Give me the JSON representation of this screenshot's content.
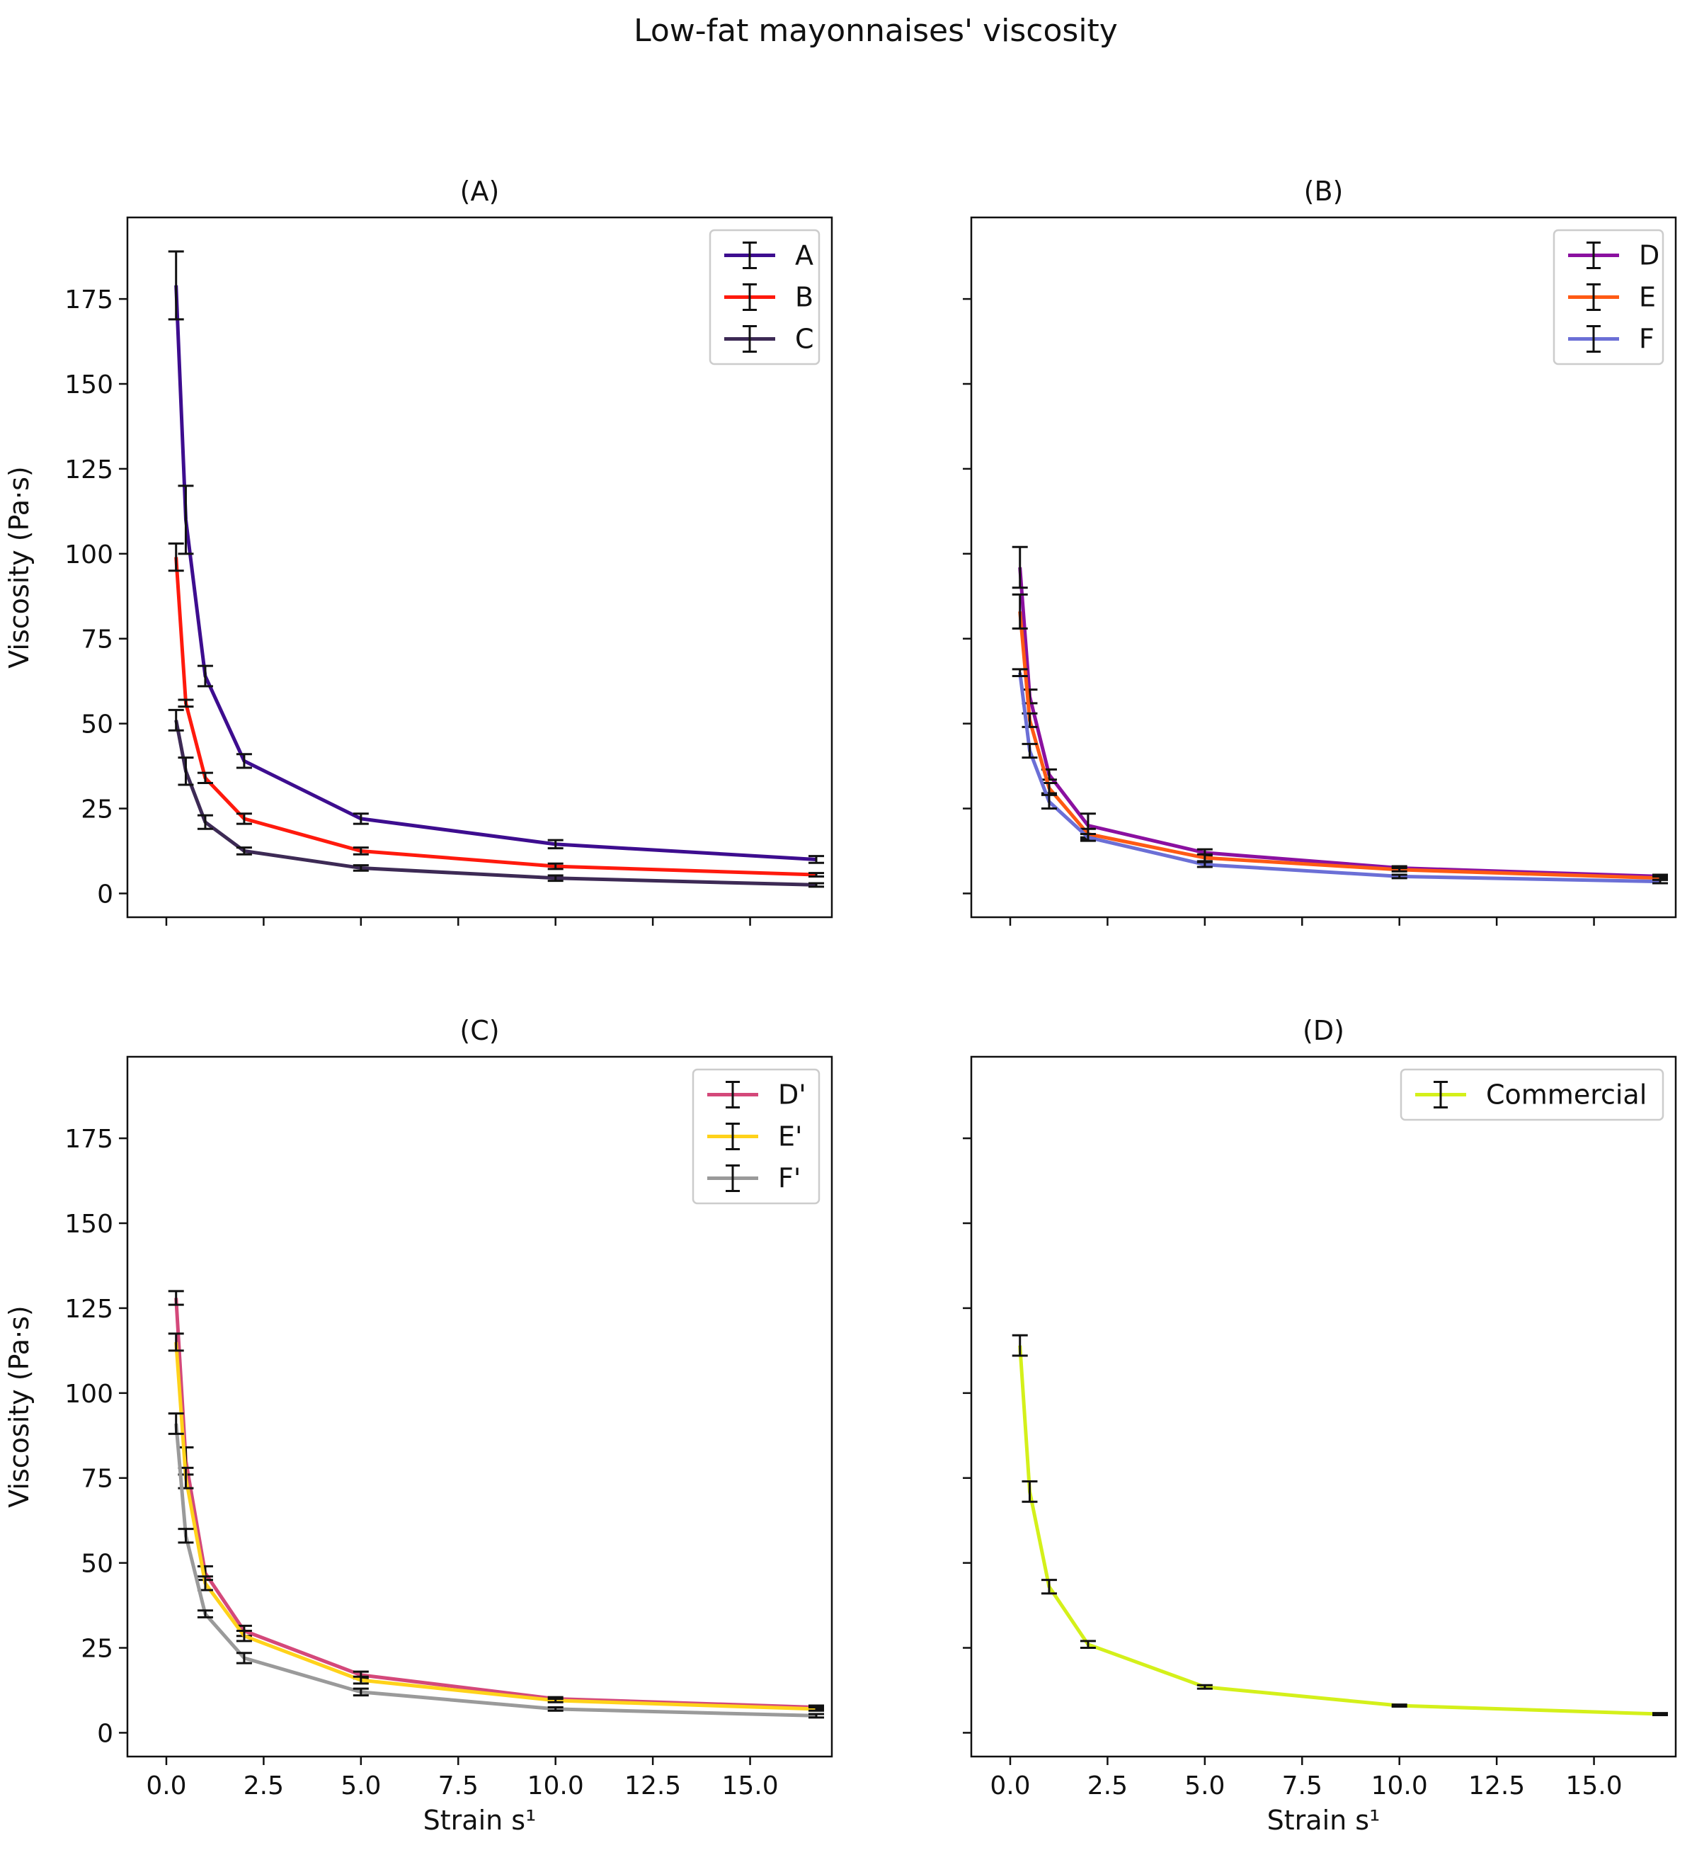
{
  "figure": {
    "title": "Low-fat mayonnaises' viscosity"
  },
  "chart_data": [
    {
      "type": "line",
      "panel_title": "(A)",
      "xlabel": "",
      "ylabel": "Viscosity (Pa·s)",
      "xlim": [
        -1,
        17.1
      ],
      "ylim": [
        -7,
        199
      ],
      "xticks": [
        0.0,
        2.5,
        5.0,
        7.5,
        10.0,
        12.5,
        15.0
      ],
      "xtick_labels": [],
      "yticks": [
        0,
        25,
        50,
        75,
        100,
        125,
        150,
        175
      ],
      "ytick_labels": [
        "0",
        "25",
        "50",
        "75",
        "100",
        "125",
        "150",
        "175"
      ],
      "legend_position": "top-right",
      "x": [
        0.25,
        0.5,
        1,
        2,
        5,
        10,
        16.7
      ],
      "series": [
        {
          "name": "A",
          "color": "#3d0d8f",
          "values": [
            179,
            110,
            64,
            39,
            22,
            14.5,
            10
          ],
          "errors": [
            10,
            10,
            3,
            2,
            1.5,
            1.2,
            1
          ]
        },
        {
          "name": "B",
          "color": "#ff1a0d",
          "values": [
            99,
            56,
            34,
            22,
            12.5,
            8,
            5.5
          ],
          "errors": [
            4,
            1,
            1.5,
            1.5,
            1,
            0.8,
            0.5
          ]
        },
        {
          "name": "C",
          "color": "#3d2a55",
          "values": [
            51,
            36,
            21,
            12.5,
            7.5,
            4.5,
            2.5
          ],
          "errors": [
            3,
            4,
            2,
            1,
            0.8,
            0.8,
            0.5
          ]
        }
      ]
    },
    {
      "type": "line",
      "panel_title": "(B)",
      "xlabel": "",
      "ylabel": "",
      "xlim": [
        -1,
        17.1
      ],
      "ylim": [
        -7,
        199
      ],
      "xticks": [
        0.0,
        2.5,
        5.0,
        7.5,
        10.0,
        12.5,
        15.0
      ],
      "xtick_labels": [],
      "yticks": [
        0,
        25,
        50,
        75,
        100,
        125,
        150,
        175
      ],
      "ytick_labels": [],
      "legend_position": "top-right",
      "x": [
        0.25,
        0.5,
        1,
        2,
        5,
        10,
        16.7
      ],
      "series": [
        {
          "name": "D",
          "color": "#8b10a0",
          "values": [
            96,
            58,
            35,
            20,
            12,
            7.5,
            5
          ],
          "errors": [
            6,
            2,
            1.5,
            3.5,
            1,
            0.5,
            0.5
          ]
        },
        {
          "name": "E",
          "color": "#ff5a14",
          "values": [
            83,
            51,
            31,
            17.5,
            10.5,
            7,
            4.5
          ],
          "errors": [
            5,
            2,
            1.5,
            1.5,
            1,
            0.5,
            0.5
          ]
        },
        {
          "name": "F",
          "color": "#6b6fd6",
          "values": [
            65,
            42,
            27,
            16.5,
            8.5,
            5,
            3.5
          ],
          "errors": [
            1,
            2,
            2,
            1,
            0.7,
            0.5,
            0.5
          ]
        }
      ]
    },
    {
      "type": "line",
      "panel_title": "(C)",
      "xlabel": "Strain s¹",
      "ylabel": "Viscosity (Pa·s)",
      "xlim": [
        -1,
        17.1
      ],
      "ylim": [
        -7,
        199
      ],
      "xticks": [
        0.0,
        2.5,
        5.0,
        7.5,
        10.0,
        12.5,
        15.0
      ],
      "xtick_labels": [
        "0.0",
        "2.5",
        "5.0",
        "7.5",
        "10.0",
        "12.5",
        "15.0"
      ],
      "yticks": [
        0,
        25,
        50,
        75,
        100,
        125,
        150,
        175
      ],
      "ytick_labels": [
        "0",
        "25",
        "50",
        "75",
        "100",
        "125",
        "150",
        "175"
      ],
      "legend_position": "top-right",
      "x": [
        0.25,
        0.5,
        1,
        2,
        5,
        10,
        16.7
      ],
      "series": [
        {
          "name": "D'",
          "color": "#d4487a",
          "values": [
            128,
            80,
            47,
            30,
            17,
            10,
            7.5
          ],
          "errors": [
            2,
            4,
            2,
            1.5,
            1,
            0.5,
            0.5
          ]
        },
        {
          "name": "E'",
          "color": "#ffd21a",
          "values": [
            115,
            75,
            44,
            28.5,
            15.5,
            9.5,
            7
          ],
          "errors": [
            2.5,
            3,
            2,
            1.5,
            1,
            0.5,
            0.5
          ]
        },
        {
          "name": "F'",
          "color": "#9a9a9a",
          "values": [
            91,
            58,
            35,
            22,
            12,
            7,
            5
          ],
          "errors": [
            3,
            2,
            1,
            1.5,
            1,
            0.5,
            0.5
          ]
        }
      ]
    },
    {
      "type": "line",
      "panel_title": "(D)",
      "xlabel": "Strain s¹",
      "ylabel": "",
      "xlim": [
        -1,
        17.1
      ],
      "ylim": [
        -7,
        199
      ],
      "xticks": [
        0.0,
        2.5,
        5.0,
        7.5,
        10.0,
        12.5,
        15.0
      ],
      "xtick_labels": [
        "0.0",
        "2.5",
        "5.0",
        "7.5",
        "10.0",
        "12.5",
        "15.0"
      ],
      "yticks": [
        0,
        25,
        50,
        75,
        100,
        125,
        150,
        175
      ],
      "ytick_labels": [],
      "legend_position": "top-right",
      "x": [
        0.25,
        0.5,
        1,
        2,
        5,
        10,
        16.7
      ],
      "series": [
        {
          "name": "Commercial",
          "color": "#d4f01a",
          "values": [
            114,
            71,
            43,
            26,
            13.5,
            8,
            5.5
          ],
          "errors": [
            3,
            3,
            2,
            1,
            0.5,
            0.3,
            0.3
          ]
        }
      ]
    }
  ]
}
